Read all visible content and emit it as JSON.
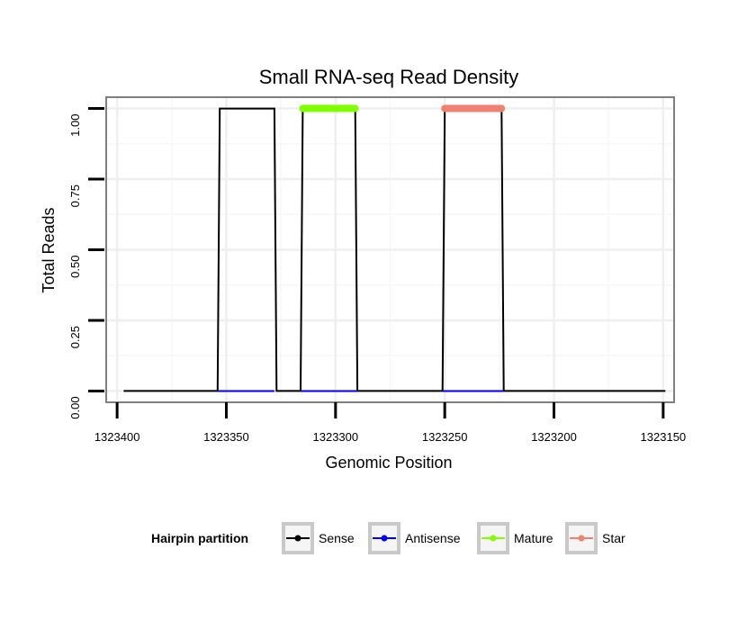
{
  "chart_data": {
    "type": "line",
    "title": "Small RNA-seq Read Density",
    "xlabel": "Genomic Position",
    "ylabel": "Total Reads",
    "xlim": [
      1323405,
      1323145
    ],
    "x_reversed": true,
    "ylim": [
      -0.04,
      1.04
    ],
    "x_ticks": [
      1323400,
      1323350,
      1323300,
      1323250,
      1323200,
      1323150
    ],
    "x_tick_labels": [
      "1323400",
      "1323350",
      "1323300",
      "1323250",
      "1323200",
      "1323150"
    ],
    "y_ticks": [
      0.0,
      0.25,
      0.5,
      0.75,
      1.0
    ],
    "y_tick_labels": [
      "0.00",
      "0.25",
      "0.50",
      "0.75",
      "1.00"
    ],
    "grid": true,
    "legend_position": "bottom",
    "legend_title": "Hairpin partition",
    "series": [
      {
        "name": "Sense",
        "color": "#000000",
        "kind": "line",
        "x": [
          1323397,
          1323354,
          1323353,
          1323328,
          1323327,
          1323316,
          1323315,
          1323291,
          1323290,
          1323251,
          1323250,
          1323224,
          1323223,
          1323149
        ],
        "y": [
          0,
          0,
          1,
          1,
          0,
          0,
          1,
          1,
          0,
          0,
          1,
          1,
          0,
          0
        ]
      },
      {
        "name": "Antisense",
        "color": "#0000FF",
        "kind": "line",
        "segments": [
          [
            1323354,
            1323328
          ],
          [
            1323316,
            1323290
          ],
          [
            1323251,
            1323223
          ]
        ],
        "y": 0
      },
      {
        "name": "Mature",
        "color": "#7FFF00",
        "kind": "thick-line",
        "x": [
          1323315,
          1323291
        ],
        "y": [
          1,
          1
        ]
      },
      {
        "name": "Star",
        "color": "#F08070",
        "kind": "thick-line",
        "x": [
          1323250,
          1323224
        ],
        "y": [
          1,
          1
        ]
      }
    ]
  }
}
